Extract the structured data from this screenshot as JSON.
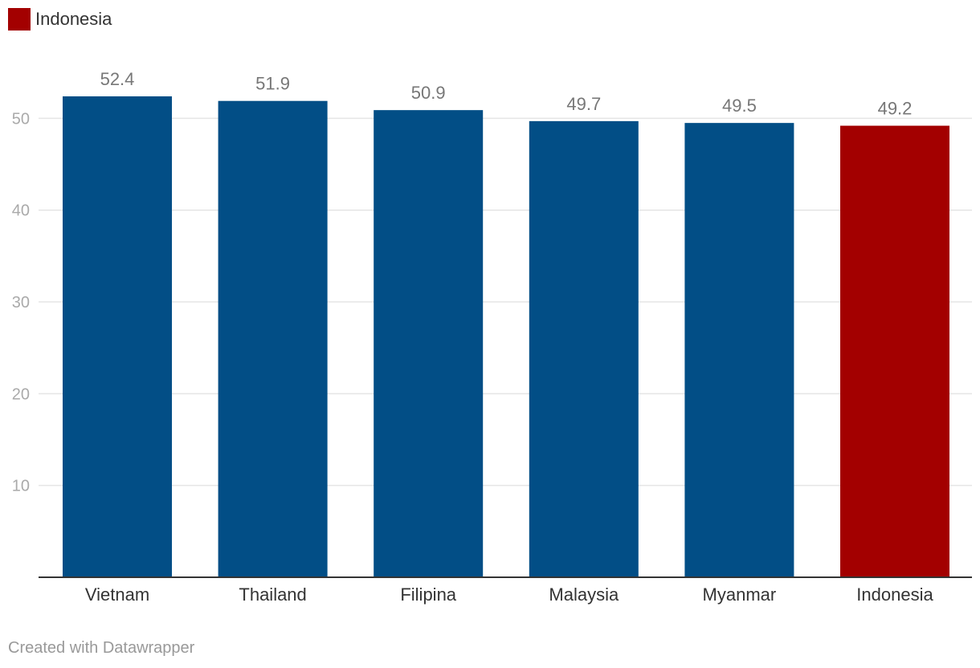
{
  "legend": {
    "label": "Indonesia",
    "color": "#a30000"
  },
  "footer": {
    "credit": "Created with Datawrapper"
  },
  "chart_data": {
    "type": "bar",
    "categories": [
      "Vietnam",
      "Thailand",
      "Filipina",
      "Malaysia",
      "Myanmar",
      "Indonesia"
    ],
    "values": [
      52.4,
      51.9,
      50.9,
      49.7,
      49.5,
      49.2
    ],
    "data_labels": [
      "52.4",
      "51.9",
      "50.9",
      "49.7",
      "49.5",
      "49.2"
    ],
    "highlight": "Indonesia",
    "colors": {
      "default": "#024e86",
      "highlight": "#a30000",
      "grid": "#e5e5e5",
      "axis": "#333333",
      "tick_label": "#aaaaaa",
      "value_label": "#777777",
      "category_label": "#333333"
    },
    "yticks": [
      10,
      20,
      30,
      40,
      50
    ],
    "ylim": [
      0,
      52.4
    ],
    "grid": true,
    "legend_position": "top-left"
  }
}
